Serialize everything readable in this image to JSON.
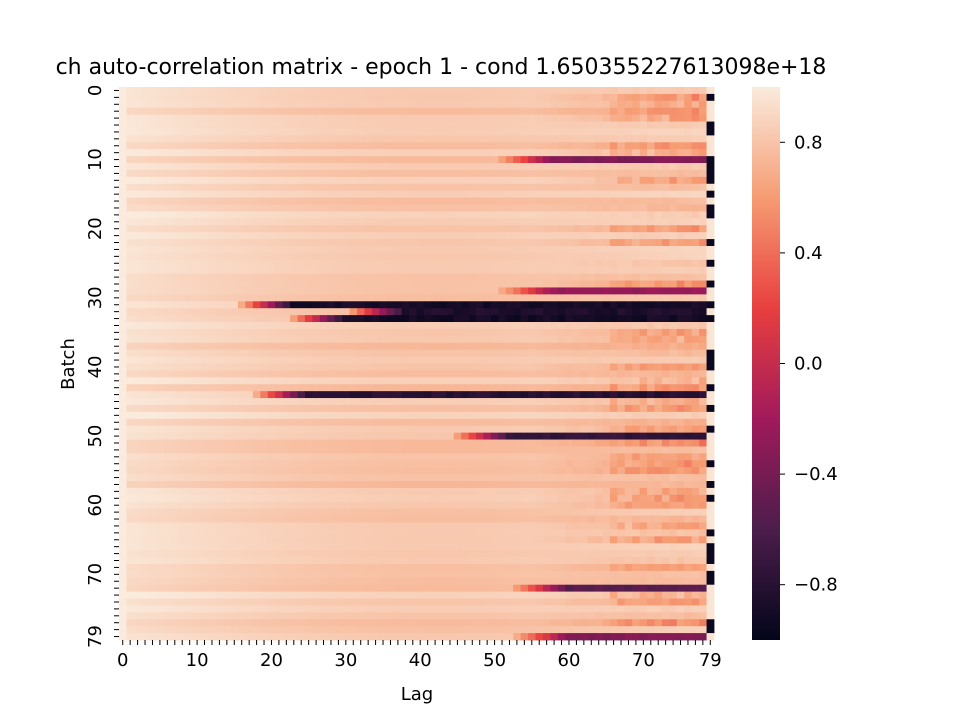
{
  "chart_data": {
    "type": "heatmap",
    "title": "ch auto-correlation matrix - epoch 1 - cond 1.650355227613098e+18",
    "xlabel": "Lag",
    "ylabel": "Batch",
    "rows": 80,
    "cols": 80,
    "x_tick_labels": [
      "0",
      "10",
      "20",
      "30",
      "40",
      "50",
      "60",
      "70",
      "79"
    ],
    "x_tick_values": [
      0,
      10,
      20,
      30,
      40,
      50,
      60,
      70,
      79
    ],
    "y_tick_labels": [
      "0",
      "10",
      "20",
      "30",
      "40",
      "50",
      "60",
      "70",
      "79"
    ],
    "y_tick_values": [
      0,
      10,
      20,
      30,
      40,
      50,
      60,
      70,
      79
    ],
    "colorbar": {
      "vmin": -1.0,
      "vmax": 1.0,
      "tick_values": [
        0.8,
        0.4,
        0.0,
        -0.4,
        -0.8
      ],
      "tick_labels": [
        "0.8",
        "0.4",
        "0.0",
        "−0.4",
        "−0.8"
      ],
      "colormap": "rocket",
      "stops": [
        "#03051a",
        "#4c1d4b",
        "#a11a5b",
        "#e83f3f",
        "#f69c73",
        "#faebdd"
      ]
    },
    "description_of_values": "Lag 0 column = 1.0; values decay gently with lag; strongly negative bands on batches 31, 32, 33, 44, 50 and partial dips on 10, 29, 72, 79; column 79 alternates near -1 / 1.",
    "strong_rows": [
      {
        "batch": 31,
        "onset_lag": 15,
        "min_value": -0.95
      },
      {
        "batch": 32,
        "onset_lag": 30,
        "min_value": -0.9
      },
      {
        "batch": 33,
        "onset_lag": 22,
        "min_value": -0.95
      },
      {
        "batch": 44,
        "onset_lag": 17,
        "min_value": -0.85
      },
      {
        "batch": 50,
        "onset_lag": 44,
        "min_value": -0.8
      },
      {
        "batch": 10,
        "onset_lag": 50,
        "min_value": -0.4
      },
      {
        "batch": 29,
        "onset_lag": 50,
        "min_value": -0.3
      },
      {
        "batch": 72,
        "onset_lag": 52,
        "min_value": -0.6
      },
      {
        "batch": 79,
        "onset_lag": 52,
        "min_value": -0.4
      }
    ],
    "last_column_negative_batches": [
      1,
      5,
      6,
      10,
      11,
      12,
      13,
      15,
      17,
      18,
      22,
      25,
      28,
      31,
      33,
      38,
      39,
      40,
      43,
      46,
      49,
      54,
      57,
      59,
      64,
      66,
      67,
      68,
      70,
      71,
      77,
      78
    ]
  }
}
